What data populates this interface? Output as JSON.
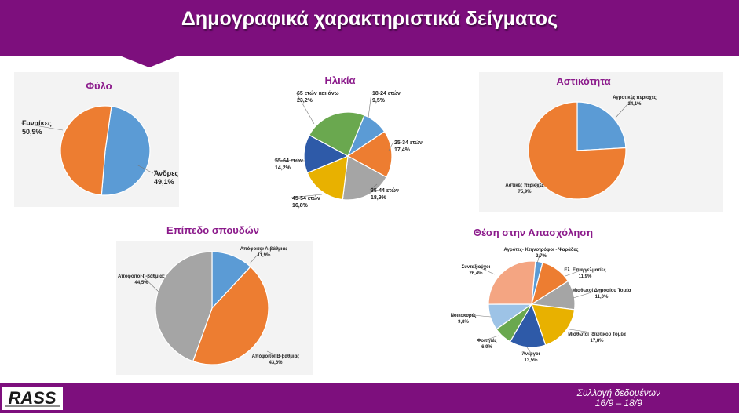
{
  "header": {
    "title": "Δημογραφικά χαρακτηριστικά δείγματος"
  },
  "footer": {
    "line1": "Συλλογή δεδομένων",
    "line2": "16/9 – 18/9",
    "logo_text": "RASS"
  },
  "colors": {
    "purple": "#7d0f7d",
    "orange": "#ed7d31",
    "blue": "#5b9bd5",
    "gray": "#a5a5a5",
    "yellow": "#e8b100",
    "darkblue": "#2e5aa8",
    "green": "#6aa84f",
    "salmon": "#f4a582",
    "lightblue": "#9dc3e6"
  },
  "chart_data": [
    {
      "type": "pie",
      "title": "Φύλο",
      "slices": [
        {
          "label": "Άνδρες",
          "value": 49.1,
          "value_label": "49,1%",
          "color": "#5b9bd5"
        },
        {
          "label": "Γυναίκες",
          "value": 50.9,
          "value_label": "50,9%",
          "color": "#ed7d31"
        }
      ]
    },
    {
      "type": "pie",
      "title": "Ηλικία",
      "slices": [
        {
          "label": "18-24 ετών",
          "value": 9.5,
          "value_label": "9,5%",
          "color": "#5b9bd5"
        },
        {
          "label": "25-34 ετών",
          "value": 17.4,
          "value_label": "17,4%",
          "color": "#ed7d31"
        },
        {
          "label": "35-44 ετών",
          "value": 18.9,
          "value_label": "18,9%",
          "color": "#a5a5a5"
        },
        {
          "label": "45-54 ετών",
          "value": 16.8,
          "value_label": "16,8%",
          "color": "#e8b100"
        },
        {
          "label": "55-64 ετών",
          "value": 14.2,
          "value_label": "14,2%",
          "color": "#2e5aa8"
        },
        {
          "label": "65 ετών και άνω",
          "value": 23.2,
          "value_label": "23,2%",
          "color": "#6aa84f"
        }
      ]
    },
    {
      "type": "pie",
      "title": "Αστικότητα",
      "slices": [
        {
          "label": "Αγροτικές περιοχές",
          "value": 24.1,
          "value_label": "24,1%",
          "color": "#5b9bd5"
        },
        {
          "label": "Αστικές περιοχές",
          "value": 75.9,
          "value_label": "75,9%",
          "color": "#ed7d31"
        }
      ]
    },
    {
      "type": "pie",
      "title": "Επίπεδο σπουδών",
      "slices": [
        {
          "label": "Απόφοιτοι Α-βάθμιας",
          "value": 11.9,
          "value_label": "11,9%",
          "color": "#5b9bd5"
        },
        {
          "label": "Απόφοιτοι Β-βάθμιας",
          "value": 43.6,
          "value_label": "43,6%",
          "color": "#ed7d31"
        },
        {
          "label": "Απόφοιτοι Γ-βάθμιας",
          "value": 44.5,
          "value_label": "44,5%",
          "color": "#a5a5a5"
        }
      ]
    },
    {
      "type": "pie",
      "title": "Θέση στην Απασχόληση",
      "slices": [
        {
          "label": "Αγρότες- Κτηνοτρόφοι - Ψαράδες",
          "value": 2.7,
          "value_label": "2,7%",
          "color": "#5b9bd5"
        },
        {
          "label": "Ελ. Επαγγελματίες",
          "value": 11.9,
          "value_label": "11,9%",
          "color": "#ed7d31"
        },
        {
          "label": "Μισθωτοί Δημοσίου Τομέα",
          "value": 11.0,
          "value_label": "11,0%",
          "color": "#a5a5a5"
        },
        {
          "label": "Μισθωτοί Ιδιωτικού Τομέα",
          "value": 17.8,
          "value_label": "17,8%",
          "color": "#e8b100"
        },
        {
          "label": "Άνεργοι",
          "value": 13.5,
          "value_label": "13,5%",
          "color": "#2e5aa8"
        },
        {
          "label": "Φοιτητές",
          "value": 6.9,
          "value_label": "6,9%",
          "color": "#6aa84f"
        },
        {
          "label": "Νοικοκυρές",
          "value": 9.8,
          "value_label": "9,8%",
          "color": "#9dc3e6"
        },
        {
          "label": "Συνταξιούχοι",
          "value": 26.4,
          "value_label": "26,4%",
          "color": "#f4a582"
        }
      ]
    }
  ]
}
